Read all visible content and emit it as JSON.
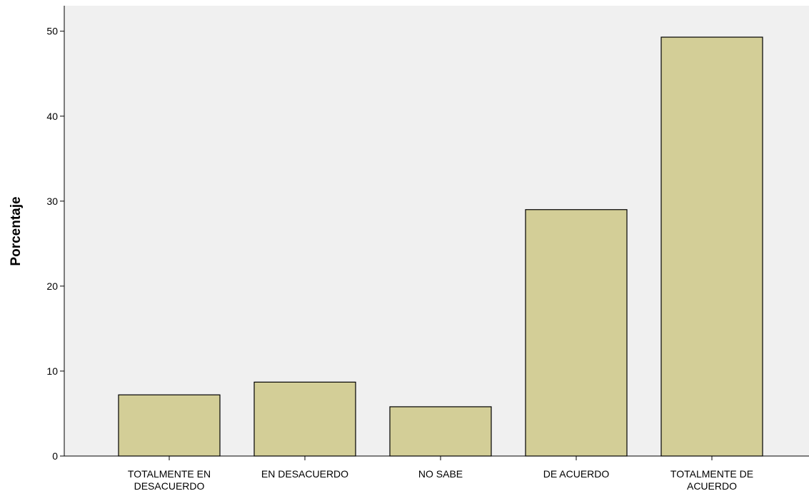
{
  "colors": {
    "plot_background": "#f0f0f0",
    "bar_fill": "#d3ce97",
    "bar_stroke": "#000000",
    "axis": "#000000"
  },
  "chart_data": {
    "type": "bar",
    "title": "",
    "xlabel": "",
    "ylabel": "Porcentaje",
    "ylim": [
      0,
      53
    ],
    "yticks": [
      0,
      10,
      20,
      30,
      40,
      50
    ],
    "ytick_labels": [
      "0",
      "10",
      "20",
      "30",
      "40",
      "50"
    ],
    "grid": false,
    "legend": "none",
    "categories": [
      "TOTALMENTE EN DESACUERDO",
      "EN DESACUERDO",
      "NO SABE",
      "DE ACUERDO",
      "TOTALMENTE DE ACUERDO"
    ],
    "category_label_lines": [
      [
        "TOTALMENTE EN",
        "DESACUERDO"
      ],
      [
        "EN DESACUERDO"
      ],
      [
        "NO SABE"
      ],
      [
        "DE ACUERDO"
      ],
      [
        "TOTALMENTE DE",
        "ACUERDO"
      ]
    ],
    "values": [
      7.2,
      8.7,
      5.8,
      29.0,
      49.3
    ]
  }
}
